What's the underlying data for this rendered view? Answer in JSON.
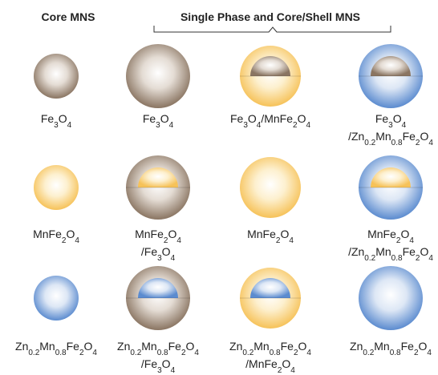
{
  "headers": {
    "core": "Core MNS",
    "shell": "Single Phase and Core/Shell MNS"
  },
  "rows": [
    [
      [
        "Fe3O4"
      ],
      [
        "Fe3O4"
      ],
      [
        "Fe3O4/MnFe2O4"
      ],
      [
        "Fe3O4",
        "/Zn0.2Mn0.8Fe2O4"
      ]
    ],
    [
      [
        "MnFe2O4"
      ],
      [
        "MnFe2O4",
        "/Fe3O4"
      ],
      [
        "MnFe2O4"
      ],
      [
        "MnFe2O4",
        "/Zn0.2Mn0.8Fe2O4"
      ]
    ],
    [
      [
        "Zn0.2Mn0.8Fe2O4"
      ],
      [
        "Zn0.2Mn0.8Fe2O4",
        "/Fe3O4"
      ],
      [
        "Zn0.2Mn0.8Fe2O4",
        "/MnFe2O4"
      ],
      [
        "Zn0.2Mn0.8Fe2O4"
      ]
    ]
  ]
}
